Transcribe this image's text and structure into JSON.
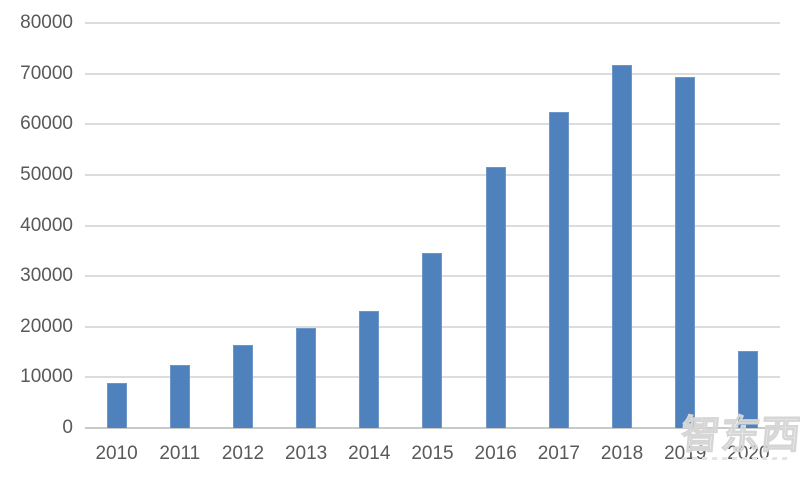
{
  "chart_data": {
    "type": "bar",
    "title": "",
    "xlabel": "",
    "ylabel": "",
    "categories": [
      "2010",
      "2011",
      "2012",
      "2013",
      "2014",
      "2015",
      "2016",
      "2017",
      "2018",
      "2019",
      "2020"
    ],
    "values": [
      8900,
      12500,
      16400,
      19800,
      23100,
      34600,
      51600,
      62400,
      71800,
      69400,
      15200
    ],
    "ylim": [
      0,
      80000
    ],
    "y_ticks": [
      0,
      10000,
      20000,
      30000,
      40000,
      50000,
      60000,
      70000,
      80000
    ],
    "grid": true,
    "legend": false,
    "bar_color": "#4f81bd",
    "gridline_color": "#dcdcdc",
    "axis_line_color": "#c9c9c9",
    "tick_label_color": "#595959"
  },
  "watermark": {
    "text": "智东西"
  }
}
